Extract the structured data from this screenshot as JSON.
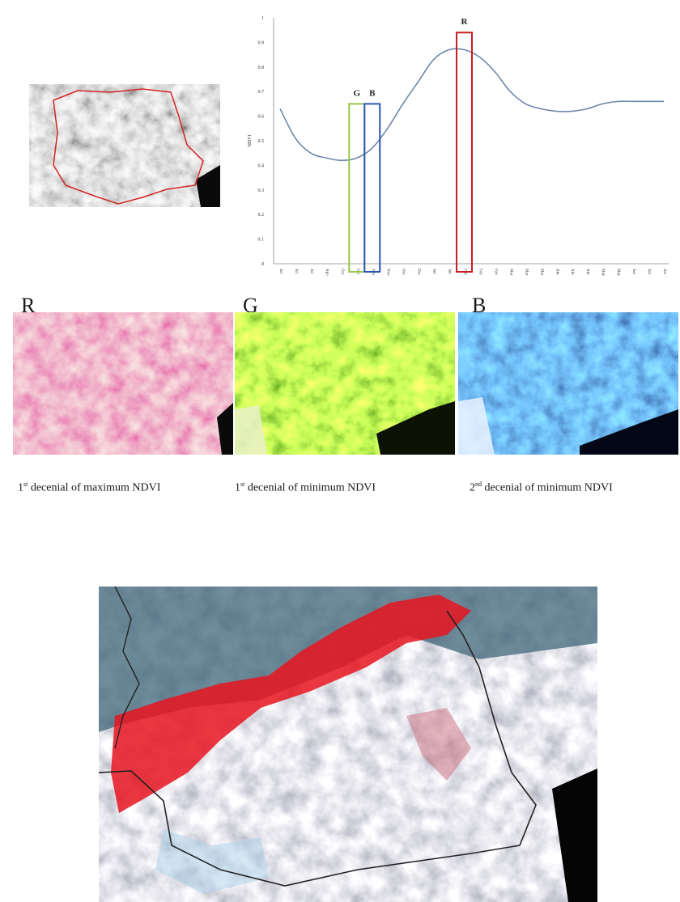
{
  "figure": {
    "band_letters": {
      "r": "R",
      "g": "G",
      "b": "B"
    },
    "captions": [
      {
        "ordinal": "1",
        "suffix": "st",
        "text": " decenial of maximum NDVI"
      },
      {
        "ordinal": "1",
        "suffix": "st",
        "text": " decenial of minimum NDVI"
      },
      {
        "ordinal": "2",
        "suffix": "nd",
        "text": " decenial of minimum NDVI"
      }
    ],
    "colors": {
      "red_band": "#d0146e",
      "green_band": "#8fc21e",
      "blue_band": "#1f3f9e",
      "composite_red": "#e8141e",
      "composite_teal": "#3f6678",
      "boundary": "#d42424",
      "curve": "#6f87ab"
    }
  },
  "chart_data": {
    "type": "line",
    "title": "",
    "xlabel": "",
    "ylabel": "NDVI",
    "ylim": [
      0,
      1
    ],
    "yticks": [
      "0",
      "0.1",
      "0.2",
      "0.3",
      "0.4",
      "0.5",
      "0.6",
      "0.7",
      "0.8",
      "0.9",
      "1"
    ],
    "categories": [
      "Jul",
      "Jul",
      "Jul",
      "Ago",
      "Oct",
      "Oct",
      "Nov",
      "Nov",
      "Dec",
      "Dec",
      "Jan",
      "Jan",
      "Feb",
      "Feb",
      "Feb",
      "Mar",
      "Mar",
      "Mar",
      "Abr",
      "Abr",
      "Abr",
      "May",
      "May",
      "Jun",
      "Jun",
      "Jun"
    ],
    "series": [
      {
        "values": [
          0.63,
          0.51,
          0.45,
          0.43,
          0.42,
          0.43,
          0.47,
          0.55,
          0.65,
          0.74,
          0.83,
          0.87,
          0.87,
          0.84,
          0.78,
          0.7,
          0.65,
          0.63,
          0.62,
          0.62,
          0.63,
          0.65,
          0.66,
          0.66,
          0.66,
          0.66
        ]
      }
    ],
    "highlights": [
      {
        "label": "G",
        "index": 5,
        "top": 0.65,
        "color": "#9bc64a"
      },
      {
        "label": "B",
        "index": 6,
        "top": 0.65,
        "color": "#2a55b5"
      },
      {
        "label": "R",
        "index": 12,
        "top": 0.94,
        "color": "#c81c22"
      }
    ],
    "grid": false,
    "legend": "none"
  }
}
